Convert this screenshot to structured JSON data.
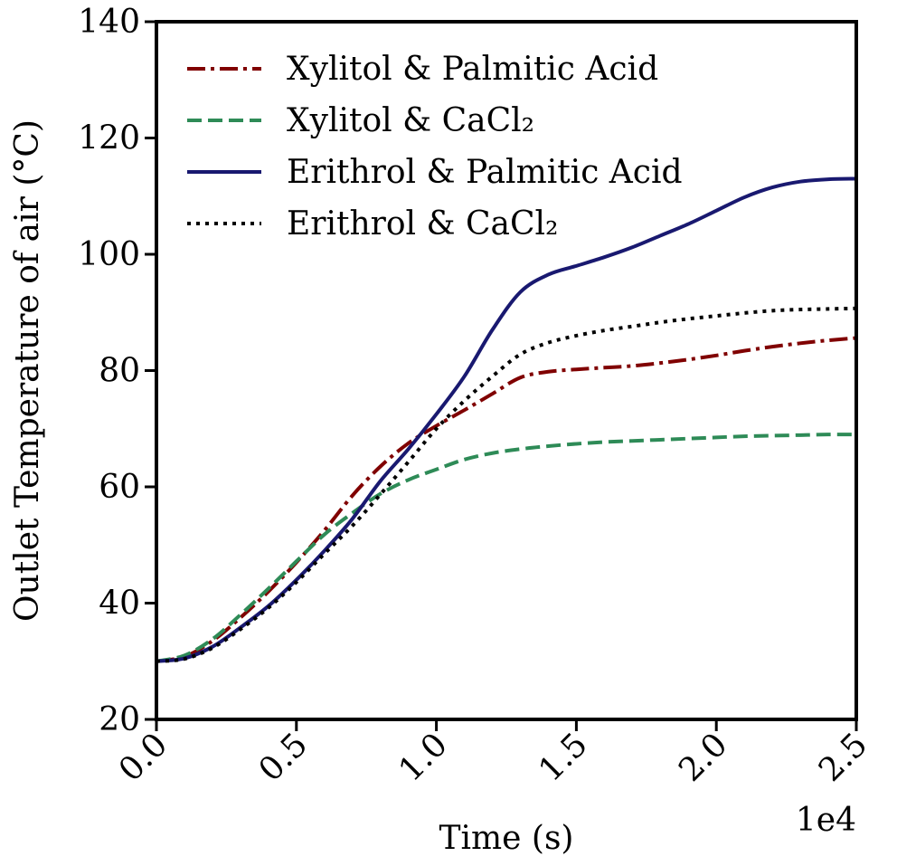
{
  "chart_data": {
    "type": "line",
    "xlabel": "Time (s)",
    "ylabel": "Outlet Temperature of air (°C)",
    "x_multiplier_label": "1e4",
    "xlim": [
      0,
      25000
    ],
    "ylim": [
      20,
      140
    ],
    "x_ticks": [
      0,
      5000,
      10000,
      15000,
      20000,
      25000
    ],
    "x_tick_labels": [
      "0.0",
      "0.5",
      "1.0",
      "1.5",
      "2.0",
      "2.5"
    ],
    "y_ticks": [
      20,
      40,
      60,
      80,
      100,
      120,
      140
    ],
    "y_tick_labels": [
      "20",
      "40",
      "60",
      "80",
      "100",
      "120",
      "140"
    ],
    "grid": false,
    "legend_position": "top-left",
    "x": [
      0,
      1000,
      2000,
      3000,
      4000,
      5000,
      6000,
      7000,
      8000,
      9000,
      10000,
      11000,
      12000,
      13000,
      14000,
      15000,
      16000,
      17000,
      18000,
      19000,
      20000,
      21000,
      22000,
      23000,
      24000,
      25000
    ],
    "series": [
      {
        "name": "Xylitol & Palmitic Acid",
        "color": "#800000",
        "dash": "dashdot",
        "values": [
          30,
          30.8,
          33.5,
          37.5,
          42,
          47,
          52.5,
          58.5,
          63.5,
          67.5,
          70.5,
          73.2,
          76,
          78.8,
          79.8,
          80.2,
          80.5,
          80.8,
          81.3,
          81.9,
          82.6,
          83.4,
          84.1,
          84.7,
          85.2,
          85.6
        ]
      },
      {
        "name": "Xylitol & CaCl₂",
        "color": "#2e8b57",
        "dash": "dashed",
        "values": [
          30,
          31,
          33.8,
          38,
          42.5,
          47.2,
          51.8,
          55.5,
          58.8,
          61.2,
          63,
          64.7,
          65.8,
          66.5,
          67,
          67.4,
          67.7,
          67.9,
          68.1,
          68.3,
          68.5,
          68.7,
          68.8,
          68.9,
          69,
          69
        ]
      },
      {
        "name": "Erithrol & Palmitic Acid",
        "color": "#191970",
        "dash": "solid",
        "values": [
          30,
          30.5,
          32.5,
          35.8,
          39.5,
          44,
          49,
          54.5,
          61,
          66.5,
          72.5,
          79,
          87,
          93.5,
          96.5,
          98,
          99.5,
          101.2,
          103.2,
          105.2,
          107.5,
          109.8,
          111.5,
          112.5,
          112.9,
          113
        ]
      },
      {
        "name": "Erithrol & CaCl₂",
        "color": "#000000",
        "dash": "dotted",
        "values": [
          30,
          30.4,
          32.3,
          35.5,
          39.2,
          43.6,
          48.5,
          53.3,
          58.7,
          64.3,
          70,
          74.8,
          79,
          82.8,
          84.8,
          86,
          86.9,
          87.6,
          88.3,
          88.9,
          89.4,
          89.9,
          90.3,
          90.5,
          90.6,
          90.7
        ]
      }
    ]
  }
}
